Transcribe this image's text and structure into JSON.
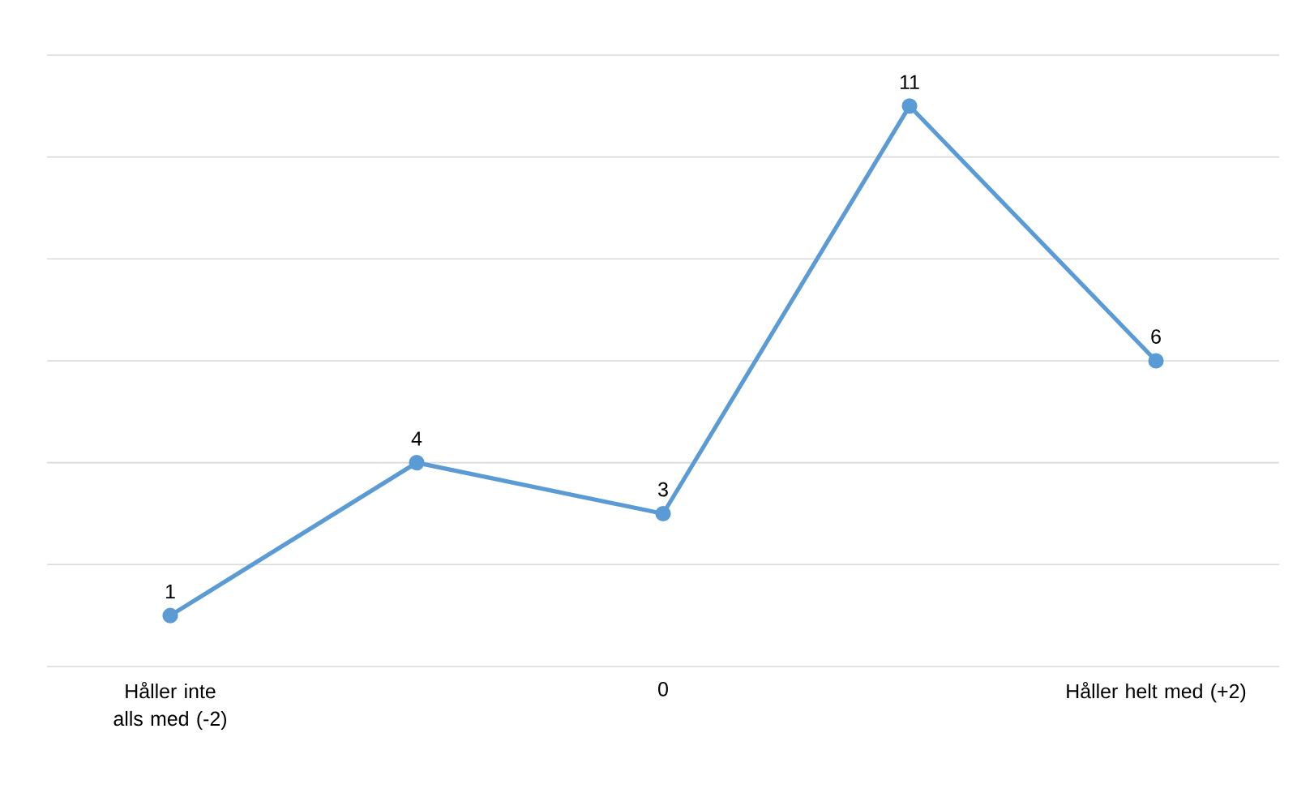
{
  "chart_data": {
    "type": "line",
    "categories": [
      "Håller inte alls med (-2)",
      null,
      "0",
      null,
      "Håller helt med (+2)"
    ],
    "values": [
      1,
      4,
      3,
      11,
      6
    ],
    "color": "#5b9bd5",
    "marker": "circle",
    "data_labels": true,
    "grid": "y",
    "tick_labels": "x",
    "ylim": [
      0,
      12
    ],
    "yticks": [
      {
        "value": 0,
        "label": null
      },
      {
        "value": 2,
        "label": null
      },
      {
        "value": 4,
        "label": null
      },
      {
        "value": 6,
        "label": null
      },
      {
        "value": 8,
        "label": null
      },
      {
        "value": 10,
        "label": null
      },
      {
        "value": 12,
        "label": null
      }
    ]
  }
}
